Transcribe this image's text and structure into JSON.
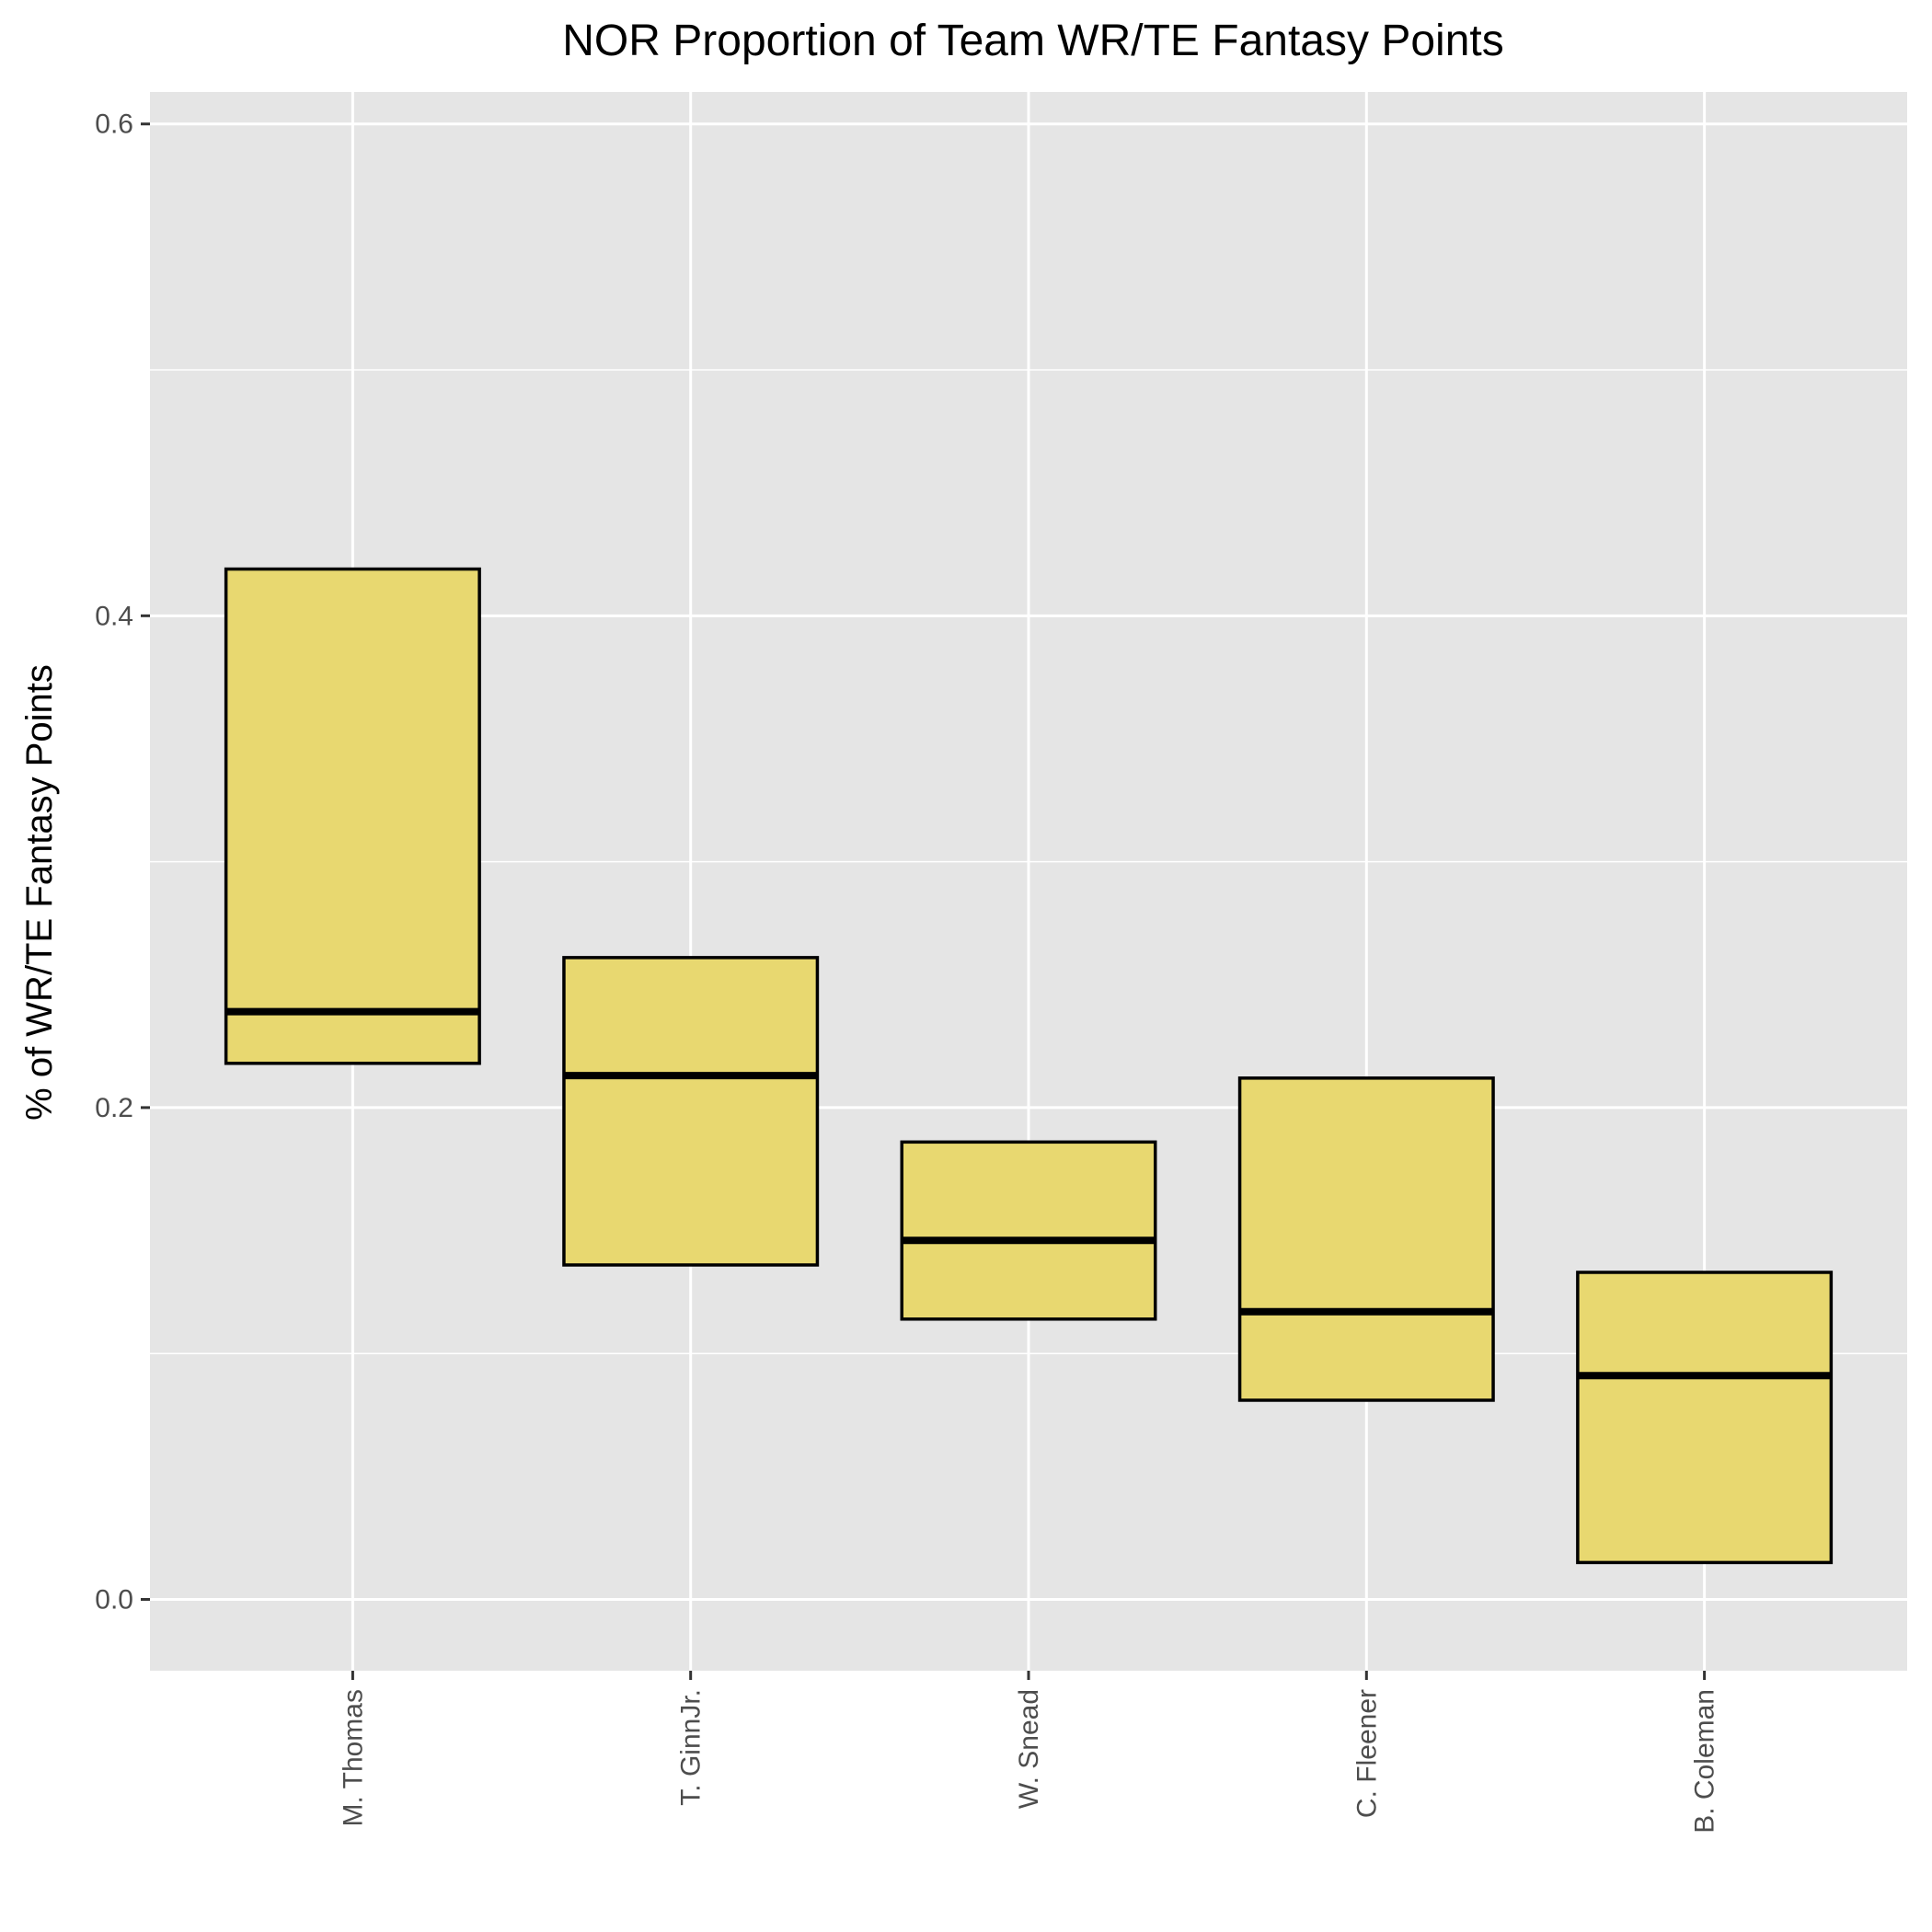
{
  "chart_data": {
    "type": "boxplot",
    "title": "NOR Proportion of Team WR/TE Fantasy Points",
    "xlabel": "",
    "ylabel": "% of WR/TE Fantasy Points",
    "ylim": [
      -0.029,
      0.613
    ],
    "yticks": [
      0.0,
      0.2,
      0.4,
      0.6
    ],
    "ytick_labels": [
      "0.0",
      "0.2",
      "0.4",
      "0.6"
    ],
    "y_minor_ticks": [
      0.1,
      0.3,
      0.5
    ],
    "grid": true,
    "categories": [
      "M. Thomas",
      "T. GinnJr.",
      "W. Snead",
      "C. Fleener",
      "B. Coleman"
    ],
    "boxes": [
      {
        "q1": 0.218,
        "median": 0.239,
        "q3": 0.419
      },
      {
        "q1": 0.136,
        "median": 0.213,
        "q3": 0.261
      },
      {
        "q1": 0.114,
        "median": 0.146,
        "q3": 0.186
      },
      {
        "q1": 0.081,
        "median": 0.117,
        "q3": 0.212
      },
      {
        "q1": 0.015,
        "median": 0.091,
        "q3": 0.133
      }
    ],
    "colors": {
      "panel": "#e5e5e5",
      "grid": "#ffffff",
      "box_fill": "#e8d870",
      "box_stroke": "#000000"
    }
  }
}
